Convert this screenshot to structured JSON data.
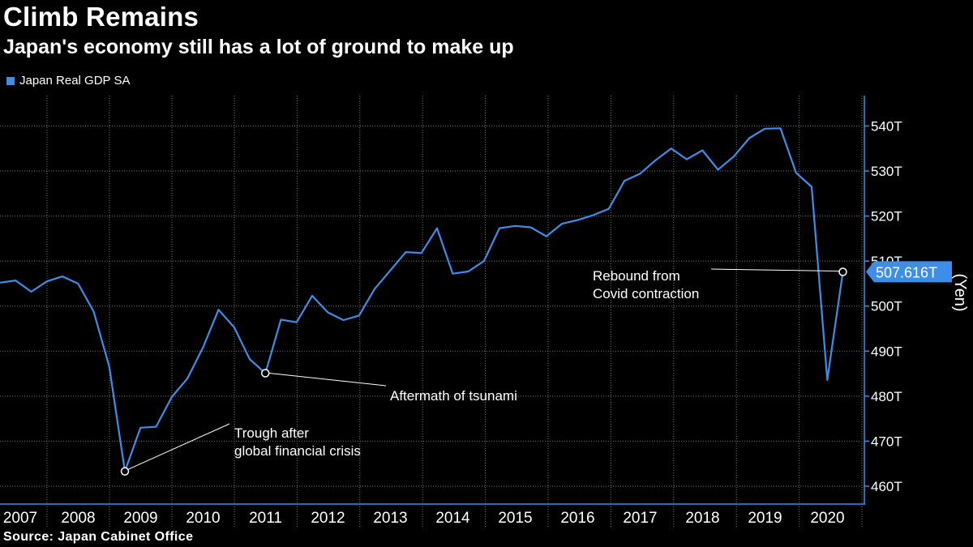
{
  "header": {
    "title": "Climb Remains",
    "subtitle": "Japan's economy still has a lot of ground to make up"
  },
  "legend": {
    "label": "Japan Real GDP SA"
  },
  "source": "Source: Japan Cabinet Office",
  "colors": {
    "background": "#000000",
    "line": "#3d8ee8",
    "text": "#ffffff",
    "grid": "#777777"
  },
  "chart_data": {
    "type": "line",
    "title": "Climb Remains",
    "subtitle": "Japan's economy still has a lot of ground to make up",
    "xlabel": "",
    "ylabel": "(Yen)",
    "ylim": [
      455,
      547
    ],
    "y_ticks": [
      460,
      470,
      480,
      490,
      500,
      510,
      520,
      530,
      540
    ],
    "y_tick_labels": [
      "460T",
      "470T",
      "480T",
      "490T",
      "500T",
      "510T",
      "520T",
      "530T",
      "540T"
    ],
    "x_range": [
      2007.0,
      2020.8
    ],
    "x_ticks": [
      2007,
      2008,
      2009,
      2010,
      2011,
      2012,
      2013,
      2014,
      2015,
      2016,
      2017,
      2018,
      2019,
      2020
    ],
    "x_tick_labels": [
      "2007",
      "2008",
      "2009",
      "2010",
      "2011",
      "2012",
      "2013",
      "2014",
      "2015",
      "2016",
      "2017",
      "2018",
      "2019",
      "2020"
    ],
    "grid": true,
    "legend_position": "top-left",
    "series": [
      {
        "name": "Japan Real GDP SA",
        "x": [
          2007.0,
          2007.25,
          2007.5,
          2007.75,
          2008.0,
          2008.25,
          2008.5,
          2008.75,
          2009.0,
          2009.25,
          2009.5,
          2009.75,
          2010.0,
          2010.25,
          2010.5,
          2010.75,
          2011.0,
          2011.25,
          2011.5,
          2011.75,
          2012.0,
          2012.25,
          2012.5,
          2012.75,
          2013.0,
          2013.25,
          2013.5,
          2013.75,
          2014.0,
          2014.25,
          2014.5,
          2014.75,
          2015.0,
          2015.25,
          2015.5,
          2015.75,
          2016.0,
          2016.25,
          2016.5,
          2016.75,
          2017.0,
          2017.25,
          2017.5,
          2017.75,
          2018.0,
          2018.25,
          2018.5,
          2018.75,
          2019.0,
          2019.25,
          2019.5,
          2019.75,
          2020.0,
          2020.25,
          2020.5
        ],
        "values": [
          505.2,
          505.7,
          503.2,
          505.5,
          506.6,
          505.0,
          498.8,
          486.5,
          463.3,
          473.0,
          473.2,
          479.8,
          483.9,
          490.8,
          499.2,
          495.3,
          488.2,
          485.1,
          497.0,
          496.4,
          502.3,
          498.6,
          496.9,
          497.9,
          503.8,
          507.9,
          512.0,
          511.8,
          517.3,
          507.2,
          507.7,
          510.0,
          517.3,
          517.8,
          517.5,
          515.5,
          518.3,
          519.1,
          520.2,
          521.6,
          527.8,
          529.4,
          532.4,
          535.0,
          532.6,
          534.6,
          530.3,
          533.2,
          537.3,
          539.4,
          539.5,
          529.6,
          526.5,
          483.6,
          507.6
        ]
      }
    ],
    "last_value_label": "507.616T",
    "last_value": 507.616,
    "annotations": [
      {
        "id": "gfc",
        "lines": [
          "Trough after",
          "global financial crisis"
        ],
        "x": 2009.0,
        "y": 463.3
      },
      {
        "id": "tsunami",
        "lines": [
          "Aftermath of tsunami"
        ],
        "x": 2011.25,
        "y": 485.1
      },
      {
        "id": "covid",
        "lines": [
          "Rebound from",
          "Covid contraction"
        ],
        "x": 2020.5,
        "y": 507.6
      }
    ]
  }
}
